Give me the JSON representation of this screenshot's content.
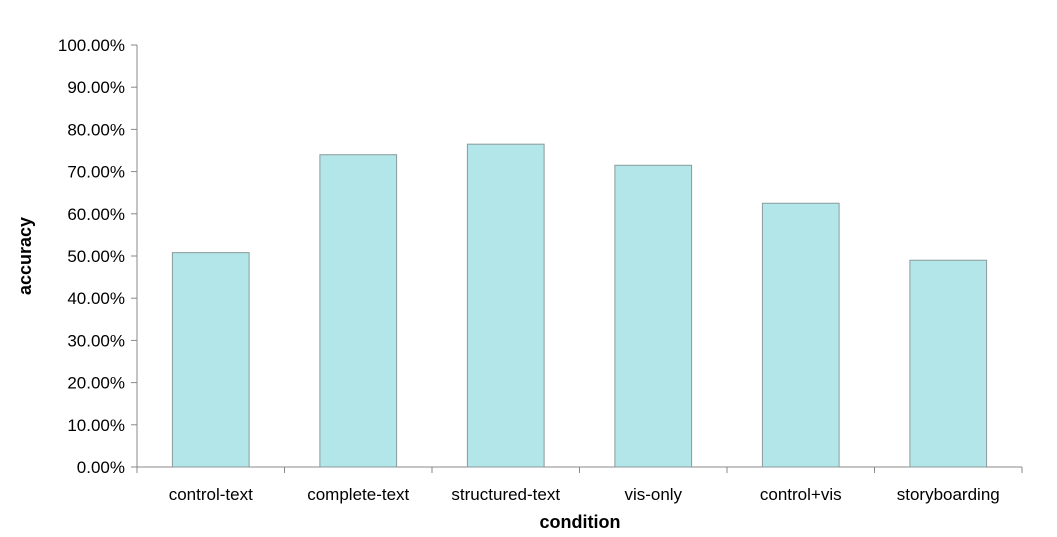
{
  "chart_data": {
    "type": "bar",
    "title": "",
    "xlabel": "condition",
    "ylabel": "accuracy",
    "categories": [
      "control-text",
      "complete-text",
      "structured-text",
      "vis-only",
      "control+vis",
      "storyboarding"
    ],
    "values": [
      50.8,
      74.0,
      76.5,
      71.5,
      62.5,
      49.0
    ],
    "ylim": [
      0,
      100
    ],
    "yticks": [
      "0.00%",
      "10.00%",
      "20.00%",
      "30.00%",
      "40.00%",
      "50.00%",
      "60.00%",
      "70.00%",
      "80.00%",
      "90.00%",
      "100.00%"
    ],
    "grid": false,
    "legend": "none",
    "colors": {
      "bar_fill": "#b3e6e8",
      "bar_stroke": "#8a9a9b",
      "axis": "#888888"
    }
  }
}
